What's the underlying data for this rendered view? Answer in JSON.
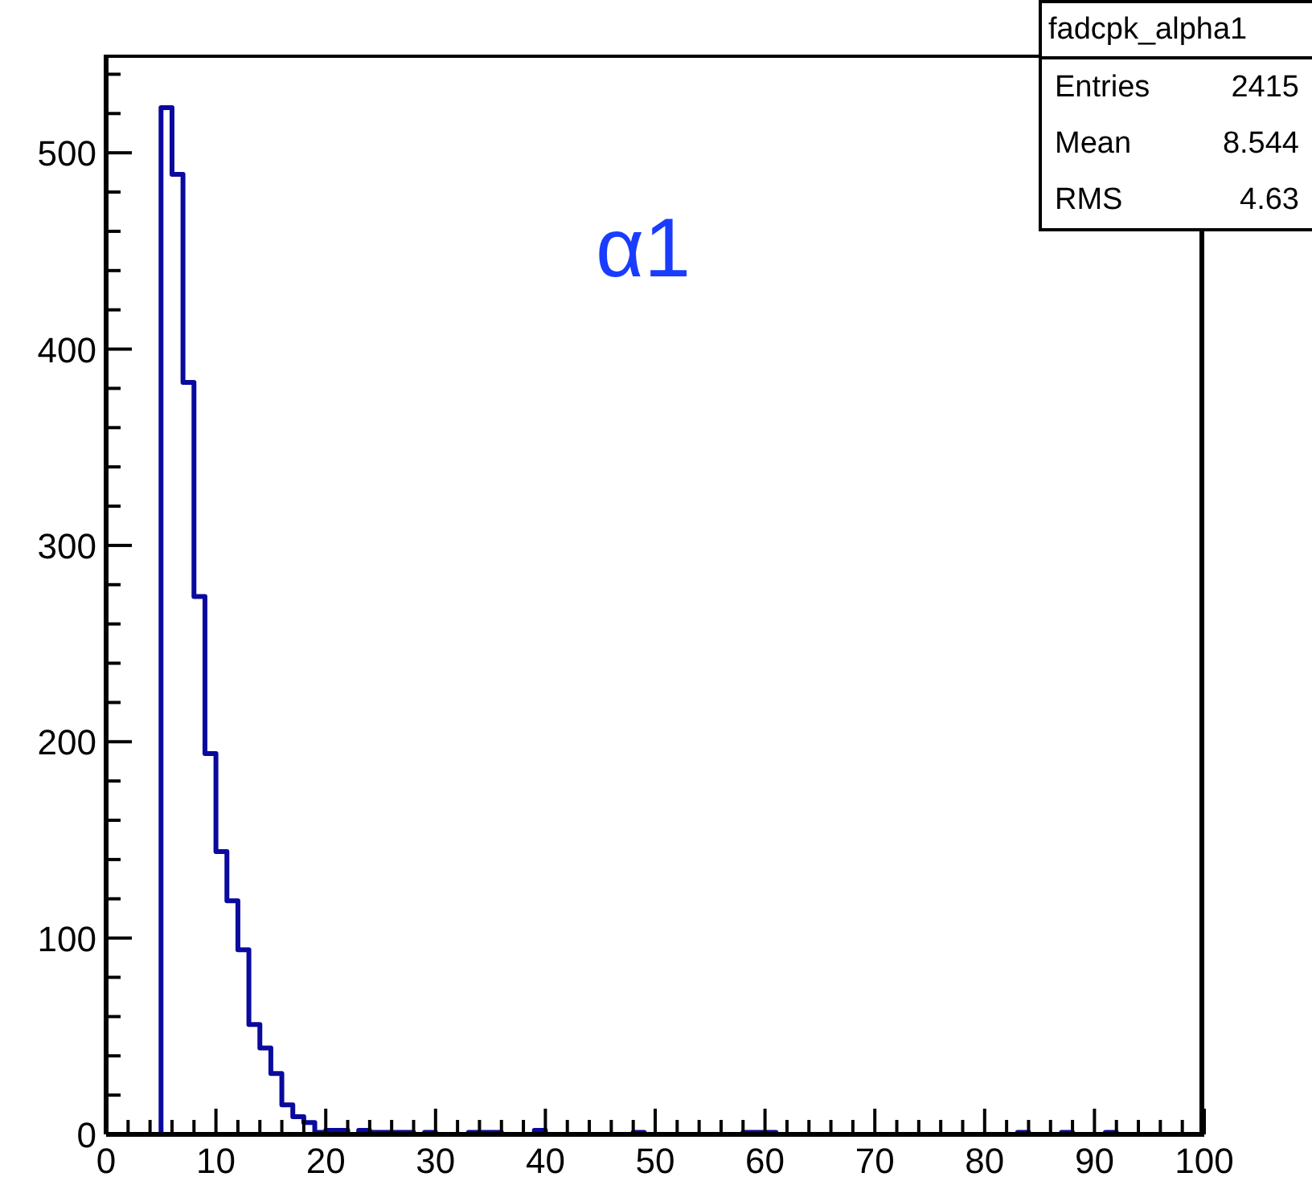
{
  "chart_data": {
    "type": "histogram",
    "title": "α1",
    "bins": [
      0,
      1,
      2,
      3,
      4,
      5,
      6,
      7,
      8,
      9,
      10,
      11,
      12,
      13,
      14,
      15,
      16,
      17,
      18,
      19,
      20,
      21,
      22,
      23,
      24,
      25,
      26,
      27,
      28,
      29,
      30,
      31,
      32,
      33,
      34,
      35,
      36,
      37,
      38,
      39,
      40,
      41,
      42,
      43,
      44,
      45,
      46,
      47,
      48,
      49,
      50,
      51,
      52,
      53,
      54,
      55,
      56,
      57,
      58,
      59,
      60,
      61,
      62,
      63,
      64,
      65,
      66,
      67,
      68,
      69,
      70,
      71,
      72,
      73,
      74,
      75,
      76,
      77,
      78,
      79,
      80,
      81,
      82,
      83,
      84,
      85,
      86,
      87,
      88,
      89,
      90,
      91,
      92,
      93,
      94,
      95,
      96,
      97,
      98,
      99,
      100
    ],
    "values": [
      0,
      0,
      0,
      0,
      0,
      523,
      489,
      383,
      274,
      194,
      144,
      119,
      94,
      56,
      44,
      31,
      15,
      9,
      6,
      1,
      2,
      2,
      0,
      2,
      1,
      1,
      1,
      1,
      0,
      1,
      0,
      0,
      0,
      1,
      1,
      1,
      0,
      0,
      0,
      2,
      0,
      0,
      0,
      0,
      0,
      0,
      0,
      0,
      1,
      0,
      0,
      0,
      0,
      0,
      0,
      0,
      0,
      0,
      1,
      1,
      1,
      0,
      0,
      0,
      0,
      0,
      0,
      0,
      0,
      0,
      0,
      0,
      0,
      0,
      0,
      0,
      0,
      0,
      0,
      0,
      0,
      0,
      0,
      1,
      0,
      0,
      0,
      1,
      0,
      0,
      0,
      1,
      0,
      0,
      0,
      0,
      0,
      0,
      0,
      0
    ],
    "color": "#0a0a9e",
    "xlim": [
      0,
      100
    ],
    "xticks": [
      0,
      {
        "value": 2,
        "label": null
      },
      {
        "value": 4,
        "label": null
      },
      {
        "value": 6,
        "label": null
      },
      {
        "value": 8,
        "label": null
      },
      10,
      {
        "value": 12,
        "label": null
      },
      {
        "value": 14,
        "label": null
      },
      {
        "value": 16,
        "label": null
      },
      {
        "value": 18,
        "label": null
      },
      20,
      {
        "value": 22,
        "label": null
      },
      {
        "value": 24,
        "label": null
      },
      {
        "value": 26,
        "label": null
      },
      {
        "value": 28,
        "label": null
      },
      30,
      {
        "value": 32,
        "label": null
      },
      {
        "value": 34,
        "label": null
      },
      {
        "value": 36,
        "label": null
      },
      {
        "value": 38,
        "label": null
      },
      40,
      {
        "value": 42,
        "label": null
      },
      {
        "value": 44,
        "label": null
      },
      {
        "value": 46,
        "label": null
      },
      {
        "value": 48,
        "label": null
      },
      50,
      {
        "value": 52,
        "label": null
      },
      {
        "value": 54,
        "label": null
      },
      {
        "value": 56,
        "label": null
      },
      {
        "value": 58,
        "label": null
      },
      60,
      {
        "value": 62,
        "label": null
      },
      {
        "value": 64,
        "label": null
      },
      {
        "value": 66,
        "label": null
      },
      {
        "value": 68,
        "label": null
      },
      70,
      {
        "value": 72,
        "label": null
      },
      {
        "value": 74,
        "label": null
      },
      {
        "value": 76,
        "label": null
      },
      {
        "value": 78,
        "label": null
      },
      80,
      {
        "value": 82,
        "label": null
      },
      {
        "value": 84,
        "label": null
      },
      {
        "value": 86,
        "label": null
      },
      {
        "value": 88,
        "label": null
      },
      90,
      {
        "value": 92,
        "label": null
      },
      {
        "value": 94,
        "label": null
      },
      {
        "value": 96,
        "label": null
      },
      {
        "value": 98,
        "label": null
      },
      100
    ],
    "ylim": [
      0,
      550
    ],
    "yticks": [
      0,
      {
        "value": 20,
        "label": null
      },
      {
        "value": 40,
        "label": null
      },
      {
        "value": 60,
        "label": null
      },
      {
        "value": 80,
        "label": null
      },
      100,
      {
        "value": 120,
        "label": null
      },
      {
        "value": 140,
        "label": null
      },
      {
        "value": 160,
        "label": null
      },
      {
        "value": 180,
        "label": null
      },
      200,
      {
        "value": 220,
        "label": null
      },
      {
        "value": 240,
        "label": null
      },
      {
        "value": 260,
        "label": null
      },
      {
        "value": 280,
        "label": null
      },
      300,
      {
        "value": 320,
        "label": null
      },
      {
        "value": 340,
        "label": null
      },
      {
        "value": 360,
        "label": null
      },
      {
        "value": 380,
        "label": null
      },
      400,
      {
        "value": 420,
        "label": null
      },
      {
        "value": 440,
        "label": null
      },
      {
        "value": 460,
        "label": null
      },
      {
        "value": 480,
        "label": null
      },
      500,
      {
        "value": 520,
        "label": null
      },
      {
        "value": 540,
        "label": null
      }
    ],
    "grid": false,
    "legend": false,
    "annotations": [
      "fadcpk_alpha1",
      "Entries",
      "2415",
      "Mean",
      "8.544",
      "RMS",
      "4.63"
    ]
  }
}
